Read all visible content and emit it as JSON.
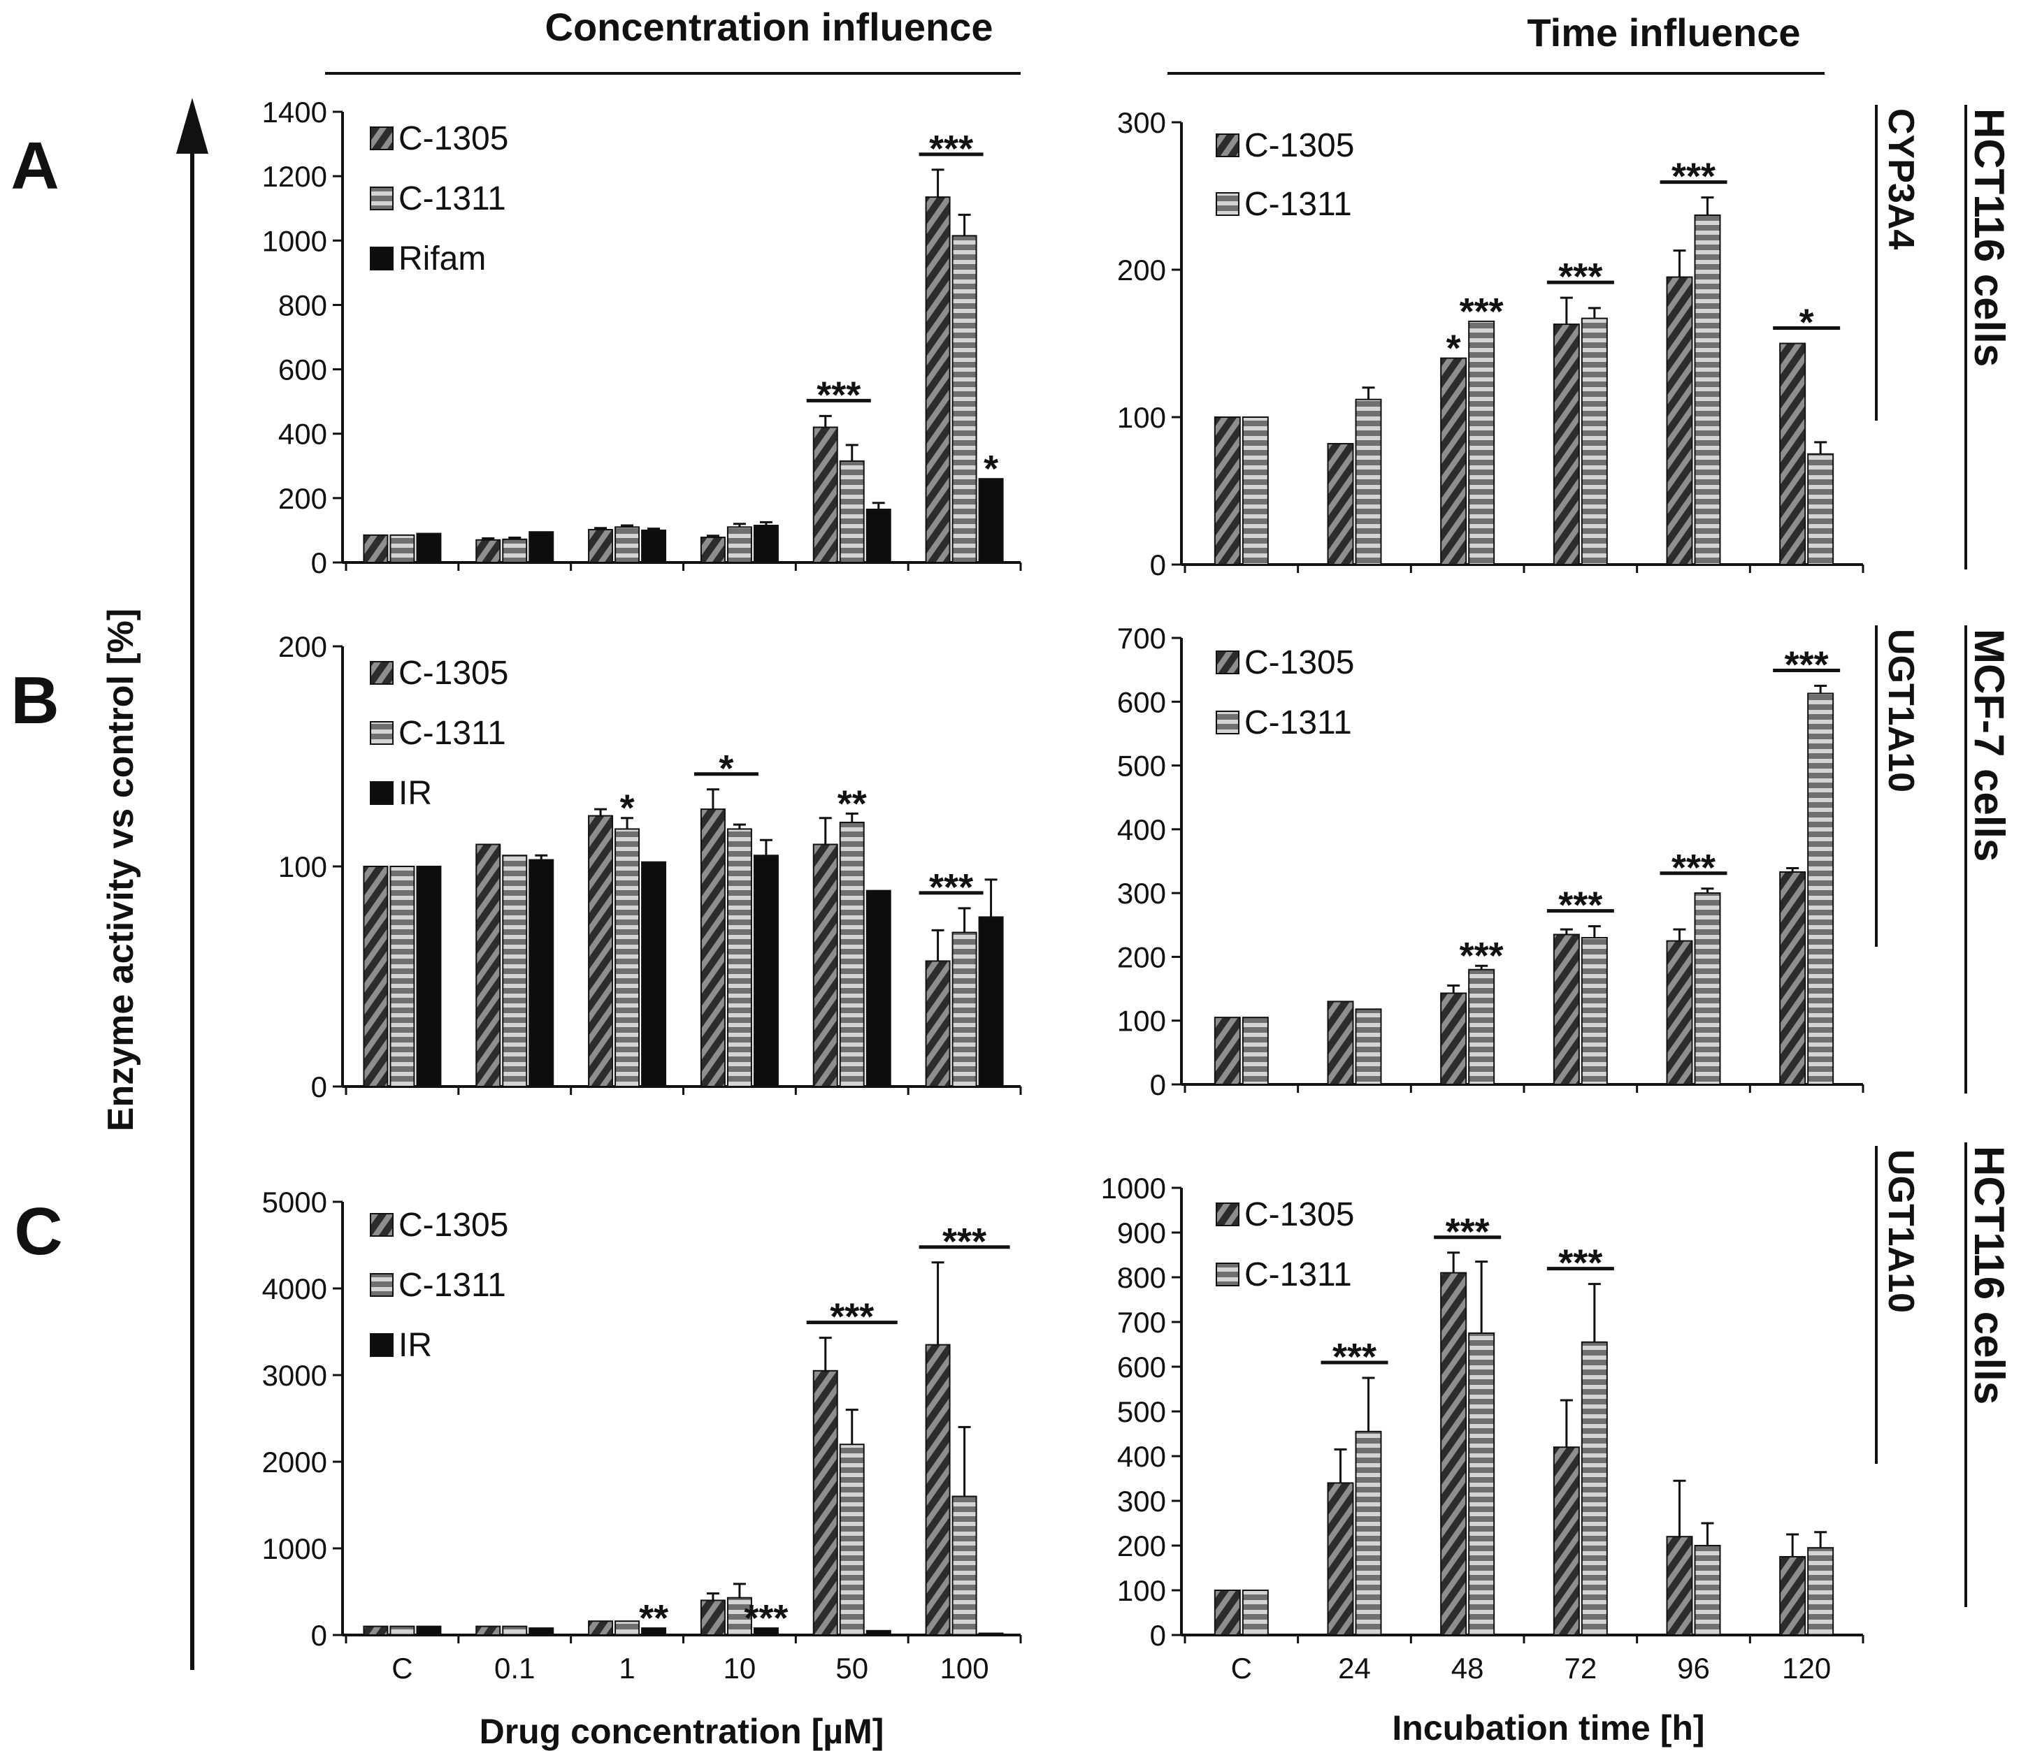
{
  "figure": {
    "col_titles": [
      "Concentration influence",
      "Time influence"
    ],
    "y_axis_label": "Enzyme activity vs control [%]",
    "x_axis_labels": [
      "Drug concentration [µM]",
      "Incubation time [h]"
    ],
    "row_letters": [
      "A",
      "B",
      "C"
    ],
    "enzyme_labels": [
      "CYP3A4",
      "UGT1A10",
      "UGT1A10"
    ],
    "cell_labels": [
      "HCT116 cells",
      "MCF-7 cells",
      "HCT116 cells"
    ]
  },
  "colors": {
    "c1305": "#4a4a4a",
    "c1311": "#8c8c8c",
    "ref": "#0d0d0d",
    "stroke": "#111111"
  },
  "chart_data": [
    {
      "id": "A-conc",
      "type": "bar",
      "row": "A",
      "categories": [
        "C",
        "0.1",
        "1",
        "10",
        "50",
        "100"
      ],
      "ylim": [
        0,
        1400
      ],
      "yticks": [
        0,
        200,
        400,
        600,
        800,
        1000,
        1200,
        1400
      ],
      "series": [
        {
          "name": "C-1305",
          "pattern": "diag",
          "values": [
            85,
            70,
            102,
            78,
            420,
            1135
          ],
          "errors": [
            0,
            5,
            5,
            5,
            35,
            85
          ]
        },
        {
          "name": "C-1311",
          "pattern": "horiz",
          "values": [
            85,
            72,
            110,
            110,
            315,
            1015
          ],
          "errors": [
            0,
            5,
            5,
            10,
            50,
            65
          ]
        },
        {
          "name": "Rifam",
          "pattern": "solid",
          "values": [
            90,
            95,
            100,
            115,
            165,
            260
          ],
          "errors": [
            0,
            0,
            5,
            10,
            20,
            0
          ]
        }
      ],
      "annotations": [
        {
          "text": "***",
          "cat": 4,
          "span": [
            0,
            1
          ],
          "bar": true
        },
        {
          "text": "***",
          "cat": 5,
          "span": [
            0,
            1
          ],
          "bar": true
        },
        {
          "text": "*",
          "cat": 5,
          "span": [
            2,
            2
          ],
          "bar": false
        }
      ]
    },
    {
      "id": "A-time",
      "type": "bar",
      "row": "A",
      "categories": [
        "C",
        "24",
        "48",
        "72",
        "96",
        "120"
      ],
      "ylim": [
        0,
        300
      ],
      "yticks": [
        0,
        100,
        200,
        300
      ],
      "series": [
        {
          "name": "C-1305",
          "pattern": "diag",
          "values": [
            100,
            82,
            140,
            163,
            195,
            150
          ],
          "errors": [
            0,
            0,
            0,
            18,
            18,
            0
          ]
        },
        {
          "name": "C-1311",
          "pattern": "horiz",
          "values": [
            100,
            112,
            165,
            167,
            237,
            75
          ],
          "errors": [
            0,
            8,
            0,
            7,
            12,
            8
          ]
        }
      ],
      "annotations": [
        {
          "text": "*",
          "cat": 2,
          "span": [
            0,
            0
          ],
          "bar": false
        },
        {
          "text": "***",
          "cat": 2,
          "span": [
            1,
            1
          ],
          "bar": false
        },
        {
          "text": "***",
          "cat": 3,
          "span": [
            0,
            1
          ],
          "bar": true
        },
        {
          "text": "***",
          "cat": 4,
          "span": [
            0,
            1
          ],
          "bar": true
        },
        {
          "text": "*",
          "cat": 5,
          "span": [
            0,
            1
          ],
          "bar": true
        }
      ]
    },
    {
      "id": "B-conc",
      "type": "bar",
      "row": "B",
      "categories": [
        "C",
        "0.1",
        "1",
        "10",
        "50",
        "100"
      ],
      "ylim": [
        0,
        200
      ],
      "yticks": [
        0,
        100,
        200
      ],
      "series": [
        {
          "name": "C-1305",
          "pattern": "diag",
          "values": [
            100,
            110,
            123,
            126,
            110,
            57
          ],
          "errors": [
            0,
            0,
            3,
            9,
            12,
            14
          ]
        },
        {
          "name": "C-1311",
          "pattern": "horiz",
          "values": [
            100,
            105,
            117,
            117,
            120,
            70
          ],
          "errors": [
            0,
            0,
            5,
            2,
            4,
            11
          ]
        },
        {
          "name": "IR",
          "pattern": "solid",
          "values": [
            100,
            103,
            102,
            105,
            89,
            77
          ],
          "errors": [
            0,
            2,
            0,
            7,
            0,
            17
          ]
        }
      ],
      "annotations": [
        {
          "text": "*",
          "cat": 2,
          "span": [
            1,
            1
          ],
          "bar": false
        },
        {
          "text": "*",
          "cat": 3,
          "span": [
            0,
            1
          ],
          "bar": true
        },
        {
          "text": "**",
          "cat": 4,
          "span": [
            1,
            1
          ],
          "bar": false
        },
        {
          "text": "***",
          "cat": 5,
          "span": [
            0,
            1
          ],
          "bar": true
        }
      ]
    },
    {
      "id": "B-time",
      "type": "bar",
      "row": "B",
      "categories": [
        "C",
        "24",
        "48",
        "72",
        "96",
        "120"
      ],
      "ylim": [
        0,
        700
      ],
      "yticks": [
        0,
        100,
        200,
        300,
        400,
        500,
        600,
        700
      ],
      "series": [
        {
          "name": "C-1305",
          "pattern": "diag",
          "values": [
            105,
            130,
            143,
            235,
            225,
            333
          ],
          "errors": [
            0,
            0,
            12,
            8,
            18,
            6
          ]
        },
        {
          "name": "C-1311",
          "pattern": "horiz",
          "values": [
            105,
            118,
            180,
            230,
            300,
            613
          ],
          "errors": [
            0,
            0,
            6,
            18,
            7,
            12
          ]
        }
      ],
      "annotations": [
        {
          "text": "***",
          "cat": 2,
          "span": [
            1,
            1
          ],
          "bar": false
        },
        {
          "text": "***",
          "cat": 3,
          "span": [
            0,
            1
          ],
          "bar": true
        },
        {
          "text": "***",
          "cat": 4,
          "span": [
            0,
            1
          ],
          "bar": true
        },
        {
          "text": "***",
          "cat": 5,
          "span": [
            0,
            1
          ],
          "bar": true
        }
      ]
    },
    {
      "id": "C-conc",
      "type": "bar",
      "row": "C",
      "categories": [
        "C",
        "0.1",
        "1",
        "10",
        "50",
        "100"
      ],
      "ylim": [
        0,
        5000
      ],
      "yticks": [
        0,
        1000,
        2000,
        3000,
        4000,
        5000
      ],
      "series": [
        {
          "name": "C-1305",
          "pattern": "diag",
          "values": [
            100,
            100,
            160,
            400,
            3050,
            3350
          ],
          "errors": [
            0,
            0,
            0,
            80,
            380,
            950
          ]
        },
        {
          "name": "C-1311",
          "pattern": "horiz",
          "values": [
            100,
            100,
            160,
            430,
            2200,
            1600
          ],
          "errors": [
            0,
            0,
            0,
            160,
            400,
            800
          ]
        },
        {
          "name": "IR",
          "pattern": "solid",
          "values": [
            100,
            80,
            80,
            80,
            50,
            20
          ],
          "errors": [
            0,
            0,
            0,
            0,
            0,
            0
          ]
        }
      ],
      "annotations": [
        {
          "text": "**",
          "cat": 2,
          "span": [
            2,
            2
          ],
          "bar": false
        },
        {
          "text": "***",
          "cat": 3,
          "span": [
            2,
            2
          ],
          "bar": false
        },
        {
          "text": "***",
          "cat": 4,
          "span": [
            0,
            2
          ],
          "bar": true
        },
        {
          "text": "***",
          "cat": 5,
          "span": [
            0,
            2
          ],
          "bar": true
        }
      ]
    },
    {
      "id": "C-time",
      "type": "bar",
      "row": "C",
      "categories": [
        "C",
        "24",
        "48",
        "72",
        "96",
        "120"
      ],
      "ylim": [
        0,
        1000
      ],
      "yticks": [
        0,
        100,
        200,
        300,
        400,
        500,
        600,
        700,
        800,
        900,
        1000
      ],
      "series": [
        {
          "name": "C-1305",
          "pattern": "diag",
          "values": [
            100,
            340,
            810,
            420,
            220,
            175
          ],
          "errors": [
            0,
            75,
            45,
            105,
            125,
            50
          ]
        },
        {
          "name": "C-1311",
          "pattern": "horiz",
          "values": [
            100,
            455,
            675,
            655,
            200,
            195
          ],
          "errors": [
            0,
            120,
            160,
            130,
            50,
            35
          ]
        }
      ],
      "annotations": [
        {
          "text": "***",
          "cat": 1,
          "span": [
            0,
            1
          ],
          "bar": true
        },
        {
          "text": "***",
          "cat": 2,
          "span": [
            0,
            1
          ],
          "bar": true
        },
        {
          "text": "***",
          "cat": 3,
          "span": [
            0,
            1
          ],
          "bar": true
        }
      ]
    }
  ]
}
